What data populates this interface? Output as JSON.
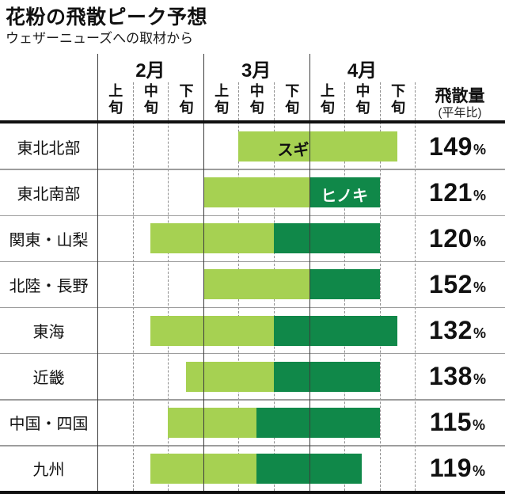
{
  "header": {
    "title": "花粉の飛散ピーク予想",
    "subtitle": "ウェザーニューズへの取材から",
    "amount_label": "飛散量",
    "amount_sublabel": "(平年比)"
  },
  "chart_data": {
    "type": "bar",
    "variant": "horizontal-gantt-timeline",
    "title": "花粉の飛散ピーク予想",
    "subtitle": "ウェザーニューズへの取材から",
    "months": [
      "2月",
      "3月",
      "4月"
    ],
    "period_labels": [
      "上旬",
      "中旬",
      "下旬"
    ],
    "value_column": {
      "label": "飛散量",
      "sublabel": "(平年比)",
      "unit": "%"
    },
    "series_legend": [
      {
        "key": "sugi",
        "label": "スギ",
        "color": "#a6d152"
      },
      {
        "key": "hinoki",
        "label": "ヒノキ",
        "color": "#108849"
      }
    ],
    "unit_note": "timeline units: 0 = start of 2月上旬, 9 = end of 4月下旬, 1 unit = one 旬",
    "grid": {
      "solid_units": [
        0,
        3,
        6
      ],
      "dashed_units": [
        1,
        2,
        4,
        5,
        7,
        8,
        9
      ]
    },
    "rows": [
      {
        "region": "東北北部",
        "value_pct": "149",
        "sugi": [
          4,
          8.5
        ],
        "hinoki": null,
        "bar_label": "スギ",
        "bar_label_on": "sugi",
        "label_u": 5.55
      },
      {
        "region": "東北南部",
        "value_pct": "121",
        "sugi": [
          3,
          6
        ],
        "hinoki": [
          6,
          8
        ],
        "bar_label": "ヒノキ",
        "bar_label_on": "hinoki",
        "label_u": 7
      },
      {
        "region": "関東・山梨",
        "value_pct": "120",
        "sugi": [
          1.5,
          5
        ],
        "hinoki": [
          5,
          8
        ]
      },
      {
        "region": "北陸・長野",
        "value_pct": "152",
        "sugi": [
          3,
          6
        ],
        "hinoki": [
          6,
          8
        ]
      },
      {
        "region": "東海",
        "value_pct": "132",
        "sugi": [
          1.5,
          5
        ],
        "hinoki": [
          5,
          8.5
        ]
      },
      {
        "region": "近畿",
        "value_pct": "138",
        "sugi": [
          2.5,
          5
        ],
        "hinoki": [
          5,
          8
        ]
      },
      {
        "region": "中国・四国",
        "value_pct": "115",
        "sugi": [
          2,
          4.5
        ],
        "hinoki": [
          4.5,
          8
        ]
      },
      {
        "region": "九州",
        "value_pct": "119",
        "sugi": [
          1.5,
          4.5
        ],
        "hinoki": [
          4.5,
          7.5
        ]
      }
    ],
    "colors": {
      "sugi": "#a6d152",
      "hinoki": "#108849",
      "bar_label_sugi_text": "#111111",
      "bar_label_hinoki_text": "#ffffff"
    }
  }
}
